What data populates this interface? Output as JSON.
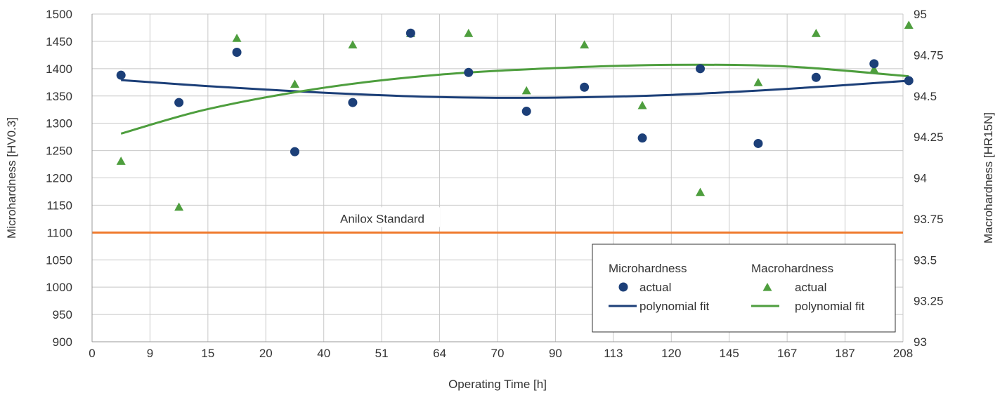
{
  "chart_data": {
    "type": "scatter",
    "title": "",
    "xlabel": "Operating Time [h]",
    "ylabel_left": "Microhardness [HV0.3]",
    "ylabel_right": "Macrohardness [HR15N]",
    "x_ticks": [
      "0",
      "9",
      "15",
      "20",
      "40",
      "51",
      "64",
      "70",
      "90",
      "113",
      "120",
      "145",
      "167",
      "187",
      "208"
    ],
    "y_left_ticks": [
      "900",
      "950",
      "1000",
      "1050",
      "1100",
      "1150",
      "1200",
      "1250",
      "1300",
      "1350",
      "1400",
      "1450",
      "1500"
    ],
    "y_right_ticks": [
      "93",
      "93.25",
      "93.5",
      "93.75",
      "94",
      "94.25",
      "94.5",
      "94.75",
      "95"
    ],
    "ylim_left": [
      900,
      1500
    ],
    "ylim_right": [
      93,
      95
    ],
    "grid": true,
    "colors": {
      "micro": "#1c3f78",
      "macro": "#4e9e3e",
      "standard": "#ef7b2f",
      "grid": "#c8c8c8"
    },
    "micro_actual": {
      "x_index": [
        0.5,
        1.5,
        2.5,
        3.5,
        4.5,
        5.5,
        6.5,
        7.5,
        8.5,
        9.5,
        10.5,
        11.5,
        12.5,
        13.5,
        14.1
      ],
      "y": [
        1388,
        1338,
        1430,
        1248,
        1338,
        1465,
        1393,
        1322,
        1366,
        1273,
        1400,
        1263,
        1384,
        1409,
        1378
      ]
    },
    "macro_actual": {
      "x_index": [
        0.5,
        1.5,
        2.5,
        3.5,
        4.5,
        5.5,
        6.5,
        7.5,
        8.5,
        9.5,
        10.5,
        11.5,
        12.5,
        13.5,
        14.1
      ],
      "y": [
        94.1,
        93.82,
        94.85,
        94.57,
        94.81,
        94.88,
        94.88,
        94.53,
        94.81,
        94.44,
        93.91,
        94.58,
        94.88,
        94.66,
        94.93
      ]
    },
    "micro_fit": {
      "x_index": [
        0.5,
        2,
        4,
        6,
        8,
        10,
        12,
        14.1
      ],
      "y": [
        1379,
        1368,
        1356,
        1348,
        1347,
        1352,
        1363,
        1378
      ]
    },
    "macro_fit": {
      "x_index": [
        0.5,
        2,
        4,
        6,
        8,
        10,
        12,
        14.1
      ],
      "y": [
        94.27,
        94.42,
        94.55,
        94.63,
        94.67,
        94.69,
        94.68,
        94.62
      ]
    },
    "standard_line": {
      "label": "Anilox Standard",
      "y": 1100
    },
    "legend": {
      "position": "bottom-right",
      "micro_title": "Microhardness",
      "macro_title": "Macrohardness",
      "actual_label": "actual",
      "fit_label": "polynomial fit"
    }
  }
}
